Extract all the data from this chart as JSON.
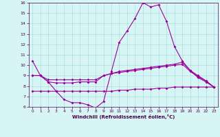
{
  "xlabel": "Windchill (Refroidissement éolien,°C)",
  "x": [
    0,
    1,
    2,
    3,
    4,
    5,
    6,
    7,
    8,
    9,
    10,
    11,
    12,
    13,
    14,
    15,
    16,
    17,
    18,
    19,
    20,
    21,
    22,
    23
  ],
  "line1": [
    10.4,
    9.0,
    8.4,
    7.5,
    6.7,
    6.4,
    6.4,
    6.2,
    5.9,
    6.5,
    9.4,
    12.2,
    13.3,
    14.5,
    16.0,
    15.6,
    15.8,
    14.2,
    11.8,
    10.4,
    9.5,
    8.8,
    8.4,
    7.9
  ],
  "line2": [
    9.0,
    9.0,
    8.4,
    8.3,
    8.3,
    8.3,
    8.4,
    8.4,
    8.4,
    9.0,
    9.2,
    9.4,
    9.5,
    9.6,
    9.7,
    9.8,
    9.9,
    10.0,
    10.1,
    10.3,
    9.5,
    9.0,
    8.5,
    7.9
  ],
  "line3": [
    9.0,
    9.0,
    8.6,
    8.6,
    8.6,
    8.6,
    8.6,
    8.6,
    8.6,
    9.0,
    9.2,
    9.3,
    9.4,
    9.5,
    9.6,
    9.7,
    9.8,
    9.9,
    10.0,
    10.1,
    9.4,
    8.9,
    8.5,
    7.9
  ],
  "line4": [
    7.5,
    7.5,
    7.5,
    7.5,
    7.5,
    7.5,
    7.5,
    7.5,
    7.5,
    7.5,
    7.5,
    7.6,
    7.6,
    7.7,
    7.7,
    7.7,
    7.8,
    7.8,
    7.9,
    7.9,
    7.9,
    7.9,
    7.9,
    7.9
  ],
  "line_color": "#990099",
  "bg_color": "#d8f5f5",
  "grid_color": "#aadddd",
  "ylim": [
    6,
    16
  ],
  "xlim": [
    -0.5,
    23.5
  ],
  "yticks": [
    6,
    7,
    8,
    9,
    10,
    11,
    12,
    13,
    14,
    15,
    16
  ],
  "xticks": [
    0,
    1,
    2,
    3,
    4,
    5,
    6,
    7,
    8,
    9,
    10,
    11,
    12,
    13,
    14,
    15,
    16,
    17,
    18,
    19,
    20,
    21,
    22,
    23
  ]
}
